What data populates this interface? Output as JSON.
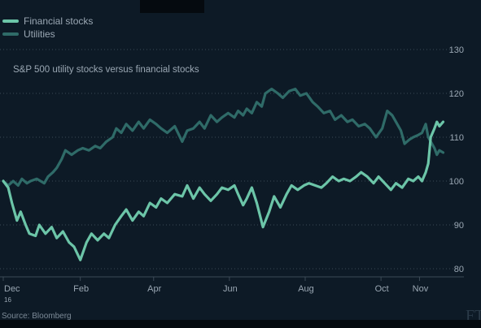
{
  "title": "S&P 500 utility stocks versus financial stocks",
  "source": "Source: Bloomberg",
  "logo_text": "FT",
  "colors": {
    "background": "#0d1a26",
    "financial": "#6cc5a8",
    "utilities": "#2f6b68",
    "grid": "#3c4a57",
    "text": "#9aa7b3"
  },
  "chart_data": {
    "type": "line",
    "title": "S&P 500 utility stocks versus financial stocks",
    "xlabel": "",
    "ylabel": "",
    "ylim": [
      80,
      130
    ],
    "yticks": [
      80,
      90,
      100,
      110,
      120,
      130
    ],
    "grid": true,
    "legend": "top-left",
    "xlim": [
      "2016-12-01",
      "2017-11-21"
    ],
    "x_ticks": [
      {
        "date": "2016-12-01",
        "label": "Dec",
        "sublabel": "16"
      },
      {
        "date": "2017-02-01",
        "label": "Feb",
        "sublabel": ""
      },
      {
        "date": "2017-04-01",
        "label": "Apr",
        "sublabel": ""
      },
      {
        "date": "2017-06-01",
        "label": "Jun",
        "sublabel": ""
      },
      {
        "date": "2017-08-01",
        "label": "Aug",
        "sublabel": ""
      },
      {
        "date": "2017-10-01",
        "label": "Oct",
        "sublabel": ""
      },
      {
        "date": "2017-11-01",
        "label": "Nov",
        "sublabel": ""
      }
    ],
    "series": [
      {
        "name": "Financial stocks",
        "color": "#6cc5a8",
        "points": [
          [
            "2016-12-01",
            100
          ],
          [
            "2016-12-05",
            98.5
          ],
          [
            "2016-12-08",
            95
          ],
          [
            "2016-12-12",
            91
          ],
          [
            "2016-12-15",
            93
          ],
          [
            "2016-12-19",
            90
          ],
          [
            "2016-12-22",
            88
          ],
          [
            "2016-12-27",
            87.5
          ],
          [
            "2016-12-30",
            90
          ],
          [
            "2017-01-04",
            88
          ],
          [
            "2017-01-09",
            89.5
          ],
          [
            "2017-01-13",
            87
          ],
          [
            "2017-01-18",
            88.5
          ],
          [
            "2017-01-23",
            86
          ],
          [
            "2017-01-27",
            85
          ],
          [
            "2017-02-01",
            82
          ],
          [
            "2017-02-06",
            86
          ],
          [
            "2017-02-10",
            88
          ],
          [
            "2017-02-15",
            86.5
          ],
          [
            "2017-02-20",
            88
          ],
          [
            "2017-02-24",
            87
          ],
          [
            "2017-03-01",
            90
          ],
          [
            "2017-03-06",
            92
          ],
          [
            "2017-03-10",
            93.5
          ],
          [
            "2017-03-15",
            91
          ],
          [
            "2017-03-20",
            93
          ],
          [
            "2017-03-24",
            92
          ],
          [
            "2017-03-29",
            95
          ],
          [
            "2017-04-03",
            94
          ],
          [
            "2017-04-07",
            96
          ],
          [
            "2017-04-12",
            95
          ],
          [
            "2017-04-18",
            97
          ],
          [
            "2017-04-24",
            96.5
          ],
          [
            "2017-04-28",
            99
          ],
          [
            "2017-05-03",
            96
          ],
          [
            "2017-05-08",
            98.5
          ],
          [
            "2017-05-12",
            97
          ],
          [
            "2017-05-17",
            95.5
          ],
          [
            "2017-05-22",
            97
          ],
          [
            "2017-05-26",
            98.5
          ],
          [
            "2017-05-31",
            98
          ],
          [
            "2017-06-05",
            99
          ],
          [
            "2017-06-08",
            97
          ],
          [
            "2017-06-12",
            94.5
          ],
          [
            "2017-06-15",
            96
          ],
          [
            "2017-06-19",
            98.5
          ],
          [
            "2017-06-23",
            95
          ],
          [
            "2017-06-28",
            89.5
          ],
          [
            "2017-07-03",
            93
          ],
          [
            "2017-07-07",
            96.5
          ],
          [
            "2017-07-12",
            94
          ],
          [
            "2017-07-17",
            97
          ],
          [
            "2017-07-21",
            99
          ],
          [
            "2017-07-26",
            98
          ],
          [
            "2017-07-31",
            99
          ],
          [
            "2017-08-04",
            99.5
          ],
          [
            "2017-08-09",
            99
          ],
          [
            "2017-08-14",
            98.5
          ],
          [
            "2017-08-18",
            99.5
          ],
          [
            "2017-08-23",
            101
          ],
          [
            "2017-08-28",
            100
          ],
          [
            "2017-09-01",
            100.5
          ],
          [
            "2017-09-06",
            100
          ],
          [
            "2017-09-11",
            101
          ],
          [
            "2017-09-15",
            102
          ],
          [
            "2017-09-20",
            101
          ],
          [
            "2017-09-25",
            99.5
          ],
          [
            "2017-09-29",
            101
          ],
          [
            "2017-10-04",
            99.5
          ],
          [
            "2017-10-09",
            98
          ],
          [
            "2017-10-13",
            99.5
          ],
          [
            "2017-10-18",
            98.5
          ],
          [
            "2017-10-23",
            100.5
          ],
          [
            "2017-10-27",
            100
          ],
          [
            "2017-10-31",
            101
          ],
          [
            "2017-11-03",
            100
          ],
          [
            "2017-11-06",
            102
          ],
          [
            "2017-11-08",
            104
          ],
          [
            "2017-11-10",
            110
          ],
          [
            "2017-11-13",
            112
          ],
          [
            "2017-11-15",
            113.5
          ],
          [
            "2017-11-17",
            112.5
          ],
          [
            "2017-11-20",
            113.5
          ]
        ]
      },
      {
        "name": "Utilities",
        "color": "#2f6b68",
        "points": [
          [
            "2016-12-01",
            100
          ],
          [
            "2016-12-05",
            99
          ],
          [
            "2016-12-09",
            100
          ],
          [
            "2016-12-13",
            99
          ],
          [
            "2016-12-16",
            100.5
          ],
          [
            "2016-12-20",
            99.5
          ],
          [
            "2016-12-23",
            100
          ],
          [
            "2016-12-28",
            100.5
          ],
          [
            "2017-01-03",
            99.5
          ],
          [
            "2017-01-06",
            101
          ],
          [
            "2017-01-10",
            102
          ],
          [
            "2017-01-13",
            103
          ],
          [
            "2017-01-17",
            105
          ],
          [
            "2017-01-20",
            107
          ],
          [
            "2017-01-25",
            106
          ],
          [
            "2017-01-30",
            107
          ],
          [
            "2017-02-03",
            107.5
          ],
          [
            "2017-02-08",
            107
          ],
          [
            "2017-02-13",
            108
          ],
          [
            "2017-02-17",
            107.5
          ],
          [
            "2017-02-22",
            109
          ],
          [
            "2017-02-27",
            110
          ],
          [
            "2017-03-02",
            112
          ],
          [
            "2017-03-06",
            111
          ],
          [
            "2017-03-10",
            113
          ],
          [
            "2017-03-15",
            111.5
          ],
          [
            "2017-03-20",
            113.5
          ],
          [
            "2017-03-24",
            112
          ],
          [
            "2017-03-29",
            114
          ],
          [
            "2017-04-03",
            113
          ],
          [
            "2017-04-07",
            112
          ],
          [
            "2017-04-12",
            111
          ],
          [
            "2017-04-18",
            112.5
          ],
          [
            "2017-04-24",
            109
          ],
          [
            "2017-04-28",
            111.5
          ],
          [
            "2017-05-03",
            112
          ],
          [
            "2017-05-08",
            113.5
          ],
          [
            "2017-05-12",
            112
          ],
          [
            "2017-05-17",
            115
          ],
          [
            "2017-05-22",
            113.5
          ],
          [
            "2017-05-26",
            114.5
          ],
          [
            "2017-05-31",
            115.5
          ],
          [
            "2017-06-05",
            114.5
          ],
          [
            "2017-06-08",
            116
          ],
          [
            "2017-06-12",
            115
          ],
          [
            "2017-06-15",
            116.5
          ],
          [
            "2017-06-19",
            115.5
          ],
          [
            "2017-06-23",
            118
          ],
          [
            "2017-06-27",
            117
          ],
          [
            "2017-06-30",
            120
          ],
          [
            "2017-07-05",
            121
          ],
          [
            "2017-07-10",
            120
          ],
          [
            "2017-07-14",
            119
          ],
          [
            "2017-07-19",
            120.5
          ],
          [
            "2017-07-24",
            121
          ],
          [
            "2017-07-28",
            119.5
          ],
          [
            "2017-08-02",
            120
          ],
          [
            "2017-08-07",
            118
          ],
          [
            "2017-08-11",
            117
          ],
          [
            "2017-08-16",
            115.5
          ],
          [
            "2017-08-21",
            116
          ],
          [
            "2017-08-25",
            114
          ],
          [
            "2017-08-30",
            115
          ],
          [
            "2017-09-04",
            113.5
          ],
          [
            "2017-09-08",
            114
          ],
          [
            "2017-09-13",
            112.5
          ],
          [
            "2017-09-18",
            113
          ],
          [
            "2017-09-22",
            112
          ],
          [
            "2017-09-27",
            110
          ],
          [
            "2017-10-02",
            112
          ],
          [
            "2017-10-06",
            116
          ],
          [
            "2017-10-10",
            115
          ],
          [
            "2017-10-13",
            113.5
          ],
          [
            "2017-10-17",
            111.5
          ],
          [
            "2017-10-20",
            108.5
          ],
          [
            "2017-10-24",
            109.5
          ],
          [
            "2017-10-27",
            110
          ],
          [
            "2017-10-31",
            110.5
          ],
          [
            "2017-11-03",
            111
          ],
          [
            "2017-11-06",
            113
          ],
          [
            "2017-11-08",
            110
          ],
          [
            "2017-11-10",
            109
          ],
          [
            "2017-11-13",
            107.5
          ],
          [
            "2017-11-15",
            106
          ],
          [
            "2017-11-17",
            107
          ],
          [
            "2017-11-20",
            106.5
          ]
        ]
      }
    ]
  }
}
